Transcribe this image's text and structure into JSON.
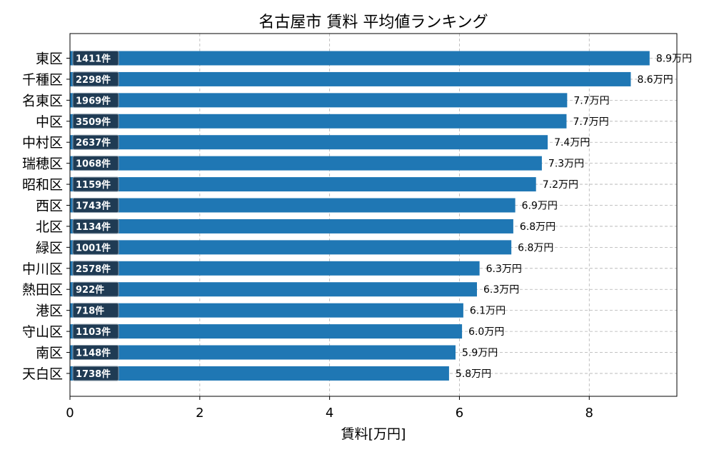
{
  "chart_data": {
    "type": "bar",
    "orientation": "horizontal",
    "title": "名古屋市 賃料 平均値ランキング",
    "xlabel": "賃料[万円]",
    "ylabel": "",
    "xlim": [
      0,
      9.35
    ],
    "xticks": [
      0,
      2,
      4,
      6,
      8
    ],
    "grid": true,
    "bar_color": "#1f77b4",
    "badge_color": "#1f3b54",
    "categories": [
      "東区",
      "千種区",
      "名東区",
      "中区",
      "中村区",
      "瑞穂区",
      "昭和区",
      "西区",
      "北区",
      "緑区",
      "中川区",
      "熱田区",
      "港区",
      "守山区",
      "南区",
      "天白区"
    ],
    "values": [
      8.93,
      8.64,
      7.66,
      7.65,
      7.36,
      7.27,
      7.18,
      6.86,
      6.83,
      6.8,
      6.31,
      6.27,
      6.06,
      6.04,
      5.94,
      5.84
    ],
    "value_labels": [
      "8.9万円",
      "8.6万円",
      "7.7万円",
      "7.7万円",
      "7.4万円",
      "7.3万円",
      "7.2万円",
      "6.9万円",
      "6.8万円",
      "6.8万円",
      "6.3万円",
      "6.3万円",
      "6.1万円",
      "6.0万円",
      "5.9万円",
      "5.8万円"
    ],
    "counts": [
      "1411件",
      "2298件",
      "1969件",
      "3509件",
      "2637件",
      "1068件",
      "1159件",
      "1743件",
      "1134件",
      "1001件",
      "2578件",
      "922件",
      "718件",
      "1103件",
      "1148件",
      "1738件"
    ]
  }
}
